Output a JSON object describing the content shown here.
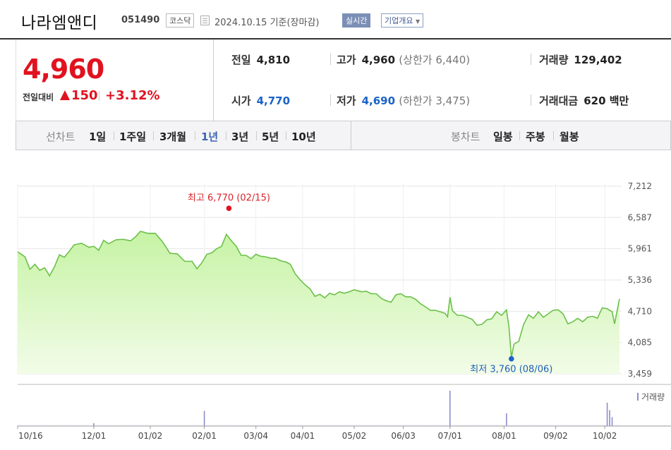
{
  "header": {
    "company_name": "나라엠앤디",
    "stock_code": "051490",
    "market": "코스닥",
    "date_text": "2024.10.15 기준(장마감)",
    "realtime_label": "실시간",
    "overview_label": "기업개요"
  },
  "quote": {
    "price": "4,960",
    "change_label": "전일대비",
    "change_value": "150",
    "change_pct": "+3.12%",
    "prev_close_label": "전일",
    "prev_close": "4,810",
    "high_label": "고가",
    "high": "4,960",
    "upper_limit": "(상한가 6,440)",
    "volume_label": "거래량",
    "volume": "129,402",
    "open_label": "시가",
    "open": "4,770",
    "low_label": "저가",
    "low": "4,690",
    "lower_limit": "(하한가 3,475)",
    "turnover_label": "거래대금",
    "turnover": "620 백만"
  },
  "toolbar": {
    "line_chart_label": "선차트",
    "periods": [
      "1일",
      "1주일",
      "3개월",
      "1년",
      "3년",
      "5년",
      "10년"
    ],
    "selected_period": "1년",
    "candle_chart_label": "봉차트",
    "candle_periods": [
      "일봉",
      "주봉",
      "월봉"
    ]
  },
  "colors": {
    "up": "#e1121f",
    "down_blue": "#1b62c6",
    "line": "#6cc04a",
    "fill_top": "#c6f3a4",
    "fill_bottom": "#f2fce8",
    "volume_bar": "#8e8ec8"
  },
  "chart_data": {
    "type": "area",
    "ylim": [
      3459,
      7212
    ],
    "yticks": [
      "7,212",
      "6,587",
      "5,961",
      "5,336",
      "4,710",
      "4,085",
      "3,459"
    ],
    "ytick_values": [
      7212,
      6587,
      5961,
      5336,
      4710,
      4085,
      3459
    ],
    "xtick_labels": [
      "10/16",
      "12/01",
      "01/02",
      "02/01",
      "03/04",
      "04/01",
      "05/02",
      "06/03",
      "07/01",
      "08/01",
      "09/02",
      "10/02"
    ],
    "xtick_index": [
      0,
      31,
      54,
      76,
      97,
      116,
      137,
      157,
      176,
      198,
      219,
      239
    ],
    "n_days": 246,
    "grid": true,
    "high_annotation": "최고 6,770 (02/15)",
    "low_annotation": "최저 3,760 (08/06)",
    "high_value": 6770,
    "high_index": 86,
    "low_value": 3760,
    "low_index": 201,
    "series_keys": [
      [
        0,
        5900
      ],
      [
        3,
        5800
      ],
      [
        5,
        5550
      ],
      [
        7,
        5650
      ],
      [
        9,
        5530
      ],
      [
        11,
        5580
      ],
      [
        13,
        5420
      ],
      [
        15,
        5600
      ],
      [
        17,
        5840
      ],
      [
        19,
        5790
      ],
      [
        21,
        5910
      ],
      [
        23,
        6040
      ],
      [
        26,
        6070
      ],
      [
        29,
        5990
      ],
      [
        31,
        6010
      ],
      [
        33,
        5930
      ],
      [
        35,
        6130
      ],
      [
        37,
        6060
      ],
      [
        40,
        6140
      ],
      [
        43,
        6150
      ],
      [
        46,
        6120
      ],
      [
        48,
        6200
      ],
      [
        50,
        6310
      ],
      [
        53,
        6270
      ],
      [
        56,
        6270
      ],
      [
        59,
        6100
      ],
      [
        62,
        5870
      ],
      [
        65,
        5860
      ],
      [
        68,
        5710
      ],
      [
        71,
        5710
      ],
      [
        73,
        5560
      ],
      [
        75,
        5680
      ],
      [
        77,
        5850
      ],
      [
        79,
        5880
      ],
      [
        81,
        5960
      ],
      [
        83,
        6010
      ],
      [
        85,
        6250
      ],
      [
        87,
        6120
      ],
      [
        89,
        6010
      ],
      [
        91,
        5830
      ],
      [
        93,
        5830
      ],
      [
        95,
        5760
      ],
      [
        97,
        5850
      ],
      [
        99,
        5810
      ],
      [
        101,
        5800
      ],
      [
        103,
        5770
      ],
      [
        105,
        5770
      ],
      [
        107,
        5720
      ],
      [
        109,
        5700
      ],
      [
        111,
        5650
      ],
      [
        113,
        5460
      ],
      [
        115,
        5340
      ],
      [
        117,
        5240
      ],
      [
        119,
        5160
      ],
      [
        121,
        5010
      ],
      [
        123,
        5050
      ],
      [
        125,
        4980
      ],
      [
        127,
        5070
      ],
      [
        129,
        5040
      ],
      [
        131,
        5100
      ],
      [
        133,
        5070
      ],
      [
        135,
        5100
      ],
      [
        137,
        5140
      ],
      [
        140,
        5100
      ],
      [
        142,
        5110
      ],
      [
        144,
        5060
      ],
      [
        146,
        5060
      ],
      [
        148,
        4970
      ],
      [
        150,
        4920
      ],
      [
        152,
        4890
      ],
      [
        154,
        5040
      ],
      [
        156,
        5060
      ],
      [
        158,
        5000
      ],
      [
        160,
        5000
      ],
      [
        162,
        4950
      ],
      [
        164,
        4860
      ],
      [
        166,
        4800
      ],
      [
        168,
        4730
      ],
      [
        170,
        4730
      ],
      [
        172,
        4700
      ],
      [
        174,
        4670
      ],
      [
        175,
        4600
      ],
      [
        176,
        4990
      ],
      [
        177,
        4720
      ],
      [
        179,
        4630
      ],
      [
        181,
        4630
      ],
      [
        183,
        4590
      ],
      [
        185,
        4550
      ],
      [
        187,
        4430
      ],
      [
        189,
        4450
      ],
      [
        191,
        4540
      ],
      [
        193,
        4560
      ],
      [
        195,
        4700
      ],
      [
        197,
        4630
      ],
      [
        199,
        4740
      ],
      [
        200,
        4400
      ],
      [
        201,
        3780
      ],
      [
        202,
        4050
      ],
      [
        204,
        4110
      ],
      [
        206,
        4450
      ],
      [
        208,
        4640
      ],
      [
        210,
        4570
      ],
      [
        212,
        4700
      ],
      [
        214,
        4590
      ],
      [
        216,
        4660
      ],
      [
        218,
        4730
      ],
      [
        220,
        4740
      ],
      [
        222,
        4660
      ],
      [
        224,
        4460
      ],
      [
        226,
        4500
      ],
      [
        228,
        4570
      ],
      [
        230,
        4500
      ],
      [
        232,
        4590
      ],
      [
        234,
        4610
      ],
      [
        236,
        4570
      ],
      [
        238,
        4780
      ],
      [
        240,
        4760
      ],
      [
        242,
        4700
      ],
      [
        243,
        4460
      ],
      [
        245,
        4960
      ]
    ],
    "volume_label": "거래량",
    "volume_spikes": [
      [
        31,
        0.08
      ],
      [
        76,
        0.43
      ],
      [
        176,
        1.0
      ],
      [
        199,
        0.36
      ],
      [
        240,
        0.66
      ],
      [
        241,
        0.45
      ],
      [
        242,
        0.25
      ]
    ]
  }
}
